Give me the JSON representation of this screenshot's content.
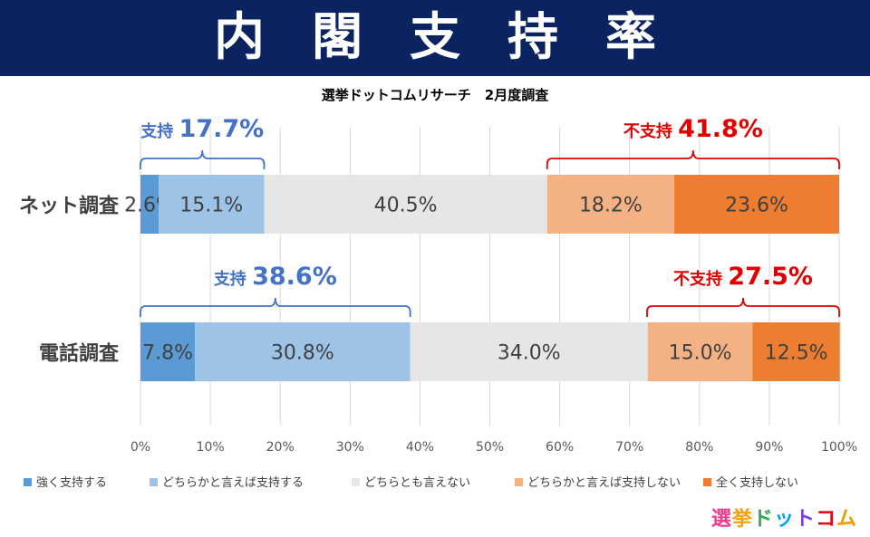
{
  "header": {
    "title": "内閣支持率",
    "subtitle": "選挙ドットコムリサーチ　2月度調査"
  },
  "brand": {
    "logo_text": "選挙ドットコム"
  },
  "colors": {
    "banner": "#0b2461",
    "support_accent": "#4472c4",
    "nonsupport_accent": "#e00000"
  },
  "chart_data": {
    "type": "bar",
    "orientation": "horizontal",
    "stacked": true,
    "categories": [
      "ネット調査",
      "電話調査"
    ],
    "series": [
      {
        "name": "強く支持する",
        "color": "#5b9bd5",
        "values": [
          2.6,
          7.8
        ],
        "labels": [
          "2.6%",
          "7.8%"
        ]
      },
      {
        "name": "どちらかと言えば支持する",
        "color": "#9dc3e6",
        "values": [
          15.1,
          30.8
        ],
        "labels": [
          "15.1%",
          "30.8%"
        ]
      },
      {
        "name": "どちらとも言えない",
        "color": "#e7e6e6",
        "values": [
          40.5,
          34.0
        ],
        "labels": [
          "40.5%",
          "34.0%"
        ]
      },
      {
        "name": "どちらかと言えば支持しない",
        "color": "#f4b183",
        "values": [
          18.2,
          15.0
        ],
        "labels": [
          "18.2%",
          "15.0%"
        ]
      },
      {
        "name": "全く支持しない",
        "color": "#ed7d31",
        "values": [
          23.6,
          12.5
        ],
        "labels": [
          "23.6%",
          "12.5%"
        ]
      }
    ],
    "xlim": [
      0,
      100
    ],
    "xticks": [
      "0%",
      "10%",
      "20%",
      "30%",
      "40%",
      "50%",
      "60%",
      "70%",
      "80%",
      "90%",
      "100%"
    ],
    "grid": true,
    "legend_position": "bottom",
    "annotations": [
      {
        "category": "ネット調査",
        "group": "support",
        "label": "支持",
        "value_text": "17.7%",
        "from": 0,
        "to": 17.7
      },
      {
        "category": "ネット調査",
        "group": "nonsupport",
        "label": "不支持",
        "value_text": "41.8%",
        "from": 58.2,
        "to": 100
      },
      {
        "category": "電話調査",
        "group": "support",
        "label": "支持",
        "value_text": "38.6%",
        "from": 0,
        "to": 38.6
      },
      {
        "category": "電話調査",
        "group": "nonsupport",
        "label": "不支持",
        "value_text": "27.5%",
        "from": 72.5,
        "to": 100
      }
    ]
  }
}
